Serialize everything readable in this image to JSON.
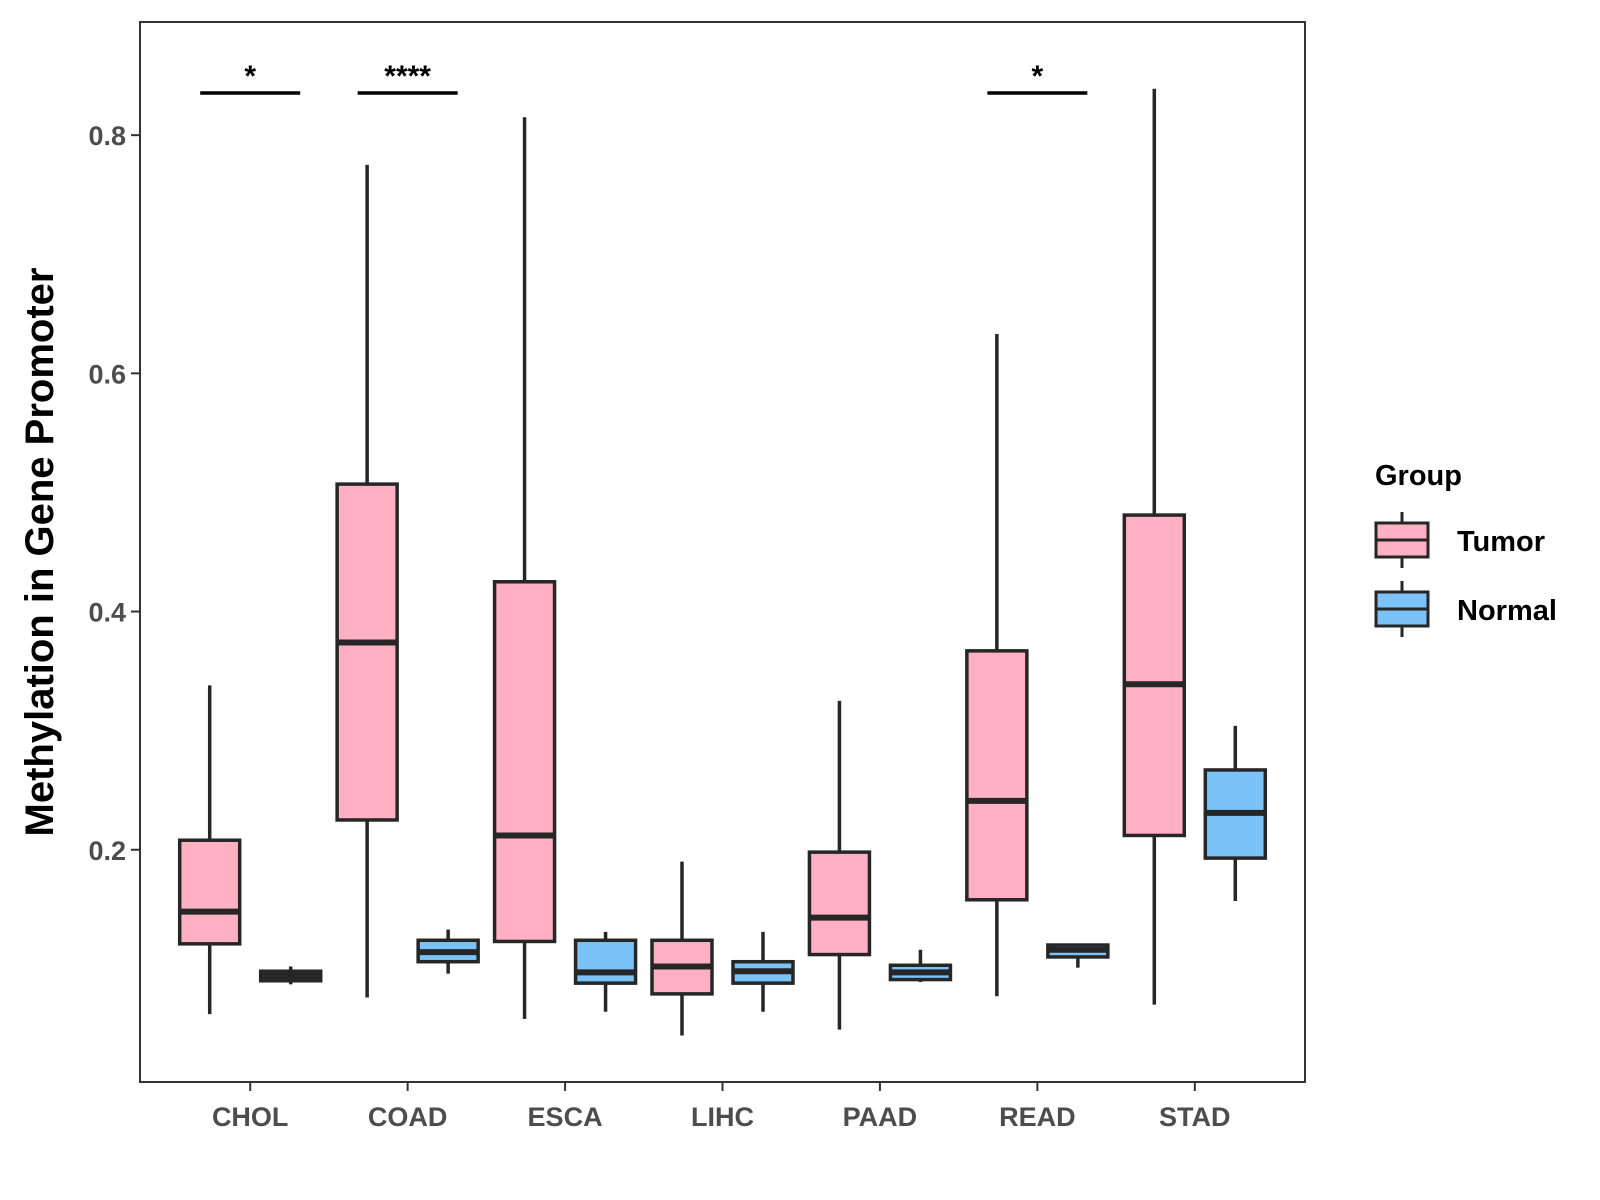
{
  "chart_data": {
    "type": "boxplot",
    "title": "",
    "xlabel": "",
    "ylabel": "Methylation in Gene Promoter",
    "ylim": [
      0.005,
      0.895
    ],
    "yticks": [
      0.2,
      0.4,
      0.6,
      0.8
    ],
    "ytick_labels": [
      "0.2",
      "0.4",
      "0.6",
      "0.8"
    ],
    "categories": [
      "CHOL",
      "COAD",
      "ESCA",
      "LIHC",
      "PAAD",
      "READ",
      "STAD"
    ],
    "legend": {
      "title": "Group",
      "position": "right",
      "entries": [
        {
          "name": "Tumor",
          "color": "#ffb0c2"
        },
        {
          "name": "Normal",
          "color": "#7bc3f6"
        }
      ]
    },
    "grid": false,
    "series": [
      {
        "name": "Tumor",
        "color": "#ffb0c2",
        "boxes": [
          {
            "min": 0.062,
            "q1": 0.121,
            "median": 0.148,
            "q3": 0.208,
            "max": 0.338
          },
          {
            "min": 0.076,
            "q1": 0.225,
            "median": 0.374,
            "q3": 0.507,
            "max": 0.775
          },
          {
            "min": 0.058,
            "q1": 0.123,
            "median": 0.212,
            "q3": 0.425,
            "max": 0.815
          },
          {
            "min": 0.044,
            "q1": 0.079,
            "median": 0.102,
            "q3": 0.124,
            "max": 0.19
          },
          {
            "min": 0.049,
            "q1": 0.112,
            "median": 0.143,
            "q3": 0.198,
            "max": 0.325
          },
          {
            "min": 0.077,
            "q1": 0.158,
            "median": 0.241,
            "q3": 0.367,
            "max": 0.633
          },
          {
            "min": 0.07,
            "q1": 0.212,
            "median": 0.339,
            "q3": 0.481,
            "max": 0.839
          }
        ]
      },
      {
        "name": "Normal",
        "color": "#7bc3f6",
        "boxes": [
          {
            "min": 0.087,
            "q1": 0.09,
            "median": 0.094,
            "q3": 0.098,
            "max": 0.102
          },
          {
            "min": 0.096,
            "q1": 0.106,
            "median": 0.114,
            "q3": 0.124,
            "max": 0.133
          },
          {
            "min": 0.064,
            "q1": 0.088,
            "median": 0.097,
            "q3": 0.124,
            "max": 0.131
          },
          {
            "min": 0.064,
            "q1": 0.088,
            "median": 0.098,
            "q3": 0.106,
            "max": 0.131
          },
          {
            "min": 0.089,
            "q1": 0.091,
            "median": 0.097,
            "q3": 0.103,
            "max": 0.116
          },
          {
            "min": 0.101,
            "q1": 0.11,
            "median": 0.116,
            "q3": 0.12,
            "max": 0.121
          },
          {
            "min": 0.157,
            "q1": 0.193,
            "median": 0.231,
            "q3": 0.267,
            "max": 0.304
          }
        ]
      }
    ],
    "annotations": [
      {
        "category": "CHOL",
        "label": "*"
      },
      {
        "category": "COAD",
        "label": "****"
      },
      {
        "category": "READ",
        "label": "*"
      }
    ]
  }
}
